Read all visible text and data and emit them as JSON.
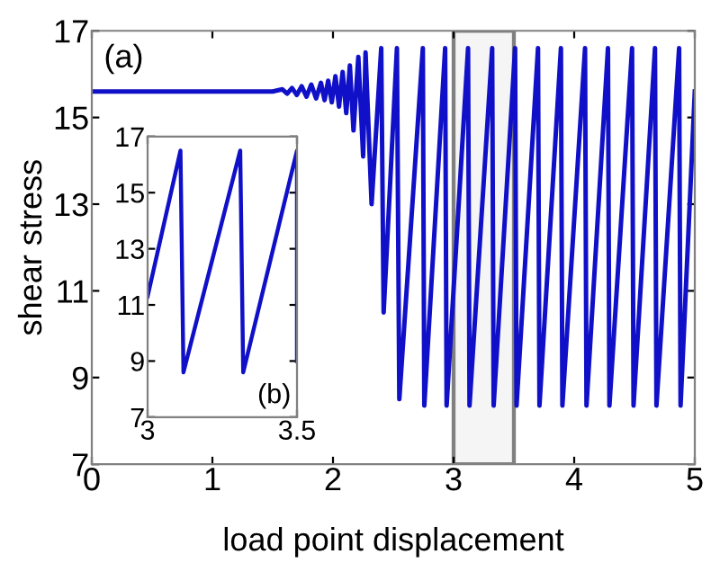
{
  "chart_data": [
    {
      "type": "line",
      "xlabel": "load point displacement",
      "ylabel": "shear stress",
      "annotations": [
        "(a)"
      ],
      "series": [
        {
          "color": "#1010c8",
          "x": [
            0,
            1.5,
            1.58,
            1.62,
            1.66,
            1.7,
            1.74,
            1.78,
            1.82,
            1.86,
            1.9,
            1.93,
            1.96,
            1.99,
            2.02,
            2.05,
            2.08,
            2.11,
            2.14,
            2.17,
            2.21,
            2.25,
            2.27,
            2.32,
            2.4,
            2.42,
            2.53,
            2.55,
            2.745,
            2.757,
            2.93,
            2.942,
            3.12,
            3.132,
            3.32,
            3.332,
            3.51,
            3.522,
            3.7,
            3.712,
            3.89,
            3.902,
            4.09,
            4.102,
            4.28,
            4.292,
            4.48,
            4.492,
            4.67,
            4.682,
            4.87,
            4.882,
            5.0
          ],
          "values": [
            15.6,
            15.6,
            15.65,
            15.55,
            15.68,
            15.52,
            15.72,
            15.48,
            15.76,
            15.44,
            15.8,
            15.4,
            15.85,
            15.35,
            15.95,
            15.25,
            16.05,
            15.1,
            16.2,
            14.7,
            16.4,
            14.1,
            16.5,
            13.0,
            16.6,
            10.5,
            16.6,
            8.5,
            16.6,
            8.35,
            16.6,
            8.35,
            16.6,
            8.35,
            16.6,
            8.35,
            16.6,
            8.35,
            16.6,
            8.35,
            16.6,
            8.35,
            16.6,
            8.35,
            16.6,
            8.35,
            16.6,
            8.35,
            16.6,
            8.35,
            16.6,
            8.35,
            15.6
          ]
        }
      ],
      "xlim": [
        0,
        5
      ],
      "ylim": [
        7,
        17
      ],
      "xticks": [
        0,
        1,
        2,
        3,
        4,
        5
      ],
      "yticks": [
        7,
        9,
        11,
        13,
        15,
        17
      ],
      "bands": [
        {
          "axis": "x",
          "from": 3,
          "to": 3.5,
          "color": "#808080"
        }
      ]
    },
    {
      "type": "line",
      "annotations": [
        "(b)"
      ],
      "series": [
        {
          "color": "#1010c8",
          "x": [
            3,
            3.11,
            3.12,
            3.31,
            3.32,
            3.5,
            3.5
          ],
          "values": [
            11.3,
            16.5,
            8.6,
            16.5,
            8.6,
            16.5,
            9.0
          ]
        }
      ],
      "xlim": [
        3,
        3.5
      ],
      "ylim": [
        7,
        17
      ],
      "xticks": [
        3,
        3.5
      ],
      "yticks": [
        7,
        9,
        11,
        13,
        15,
        17
      ]
    }
  ]
}
